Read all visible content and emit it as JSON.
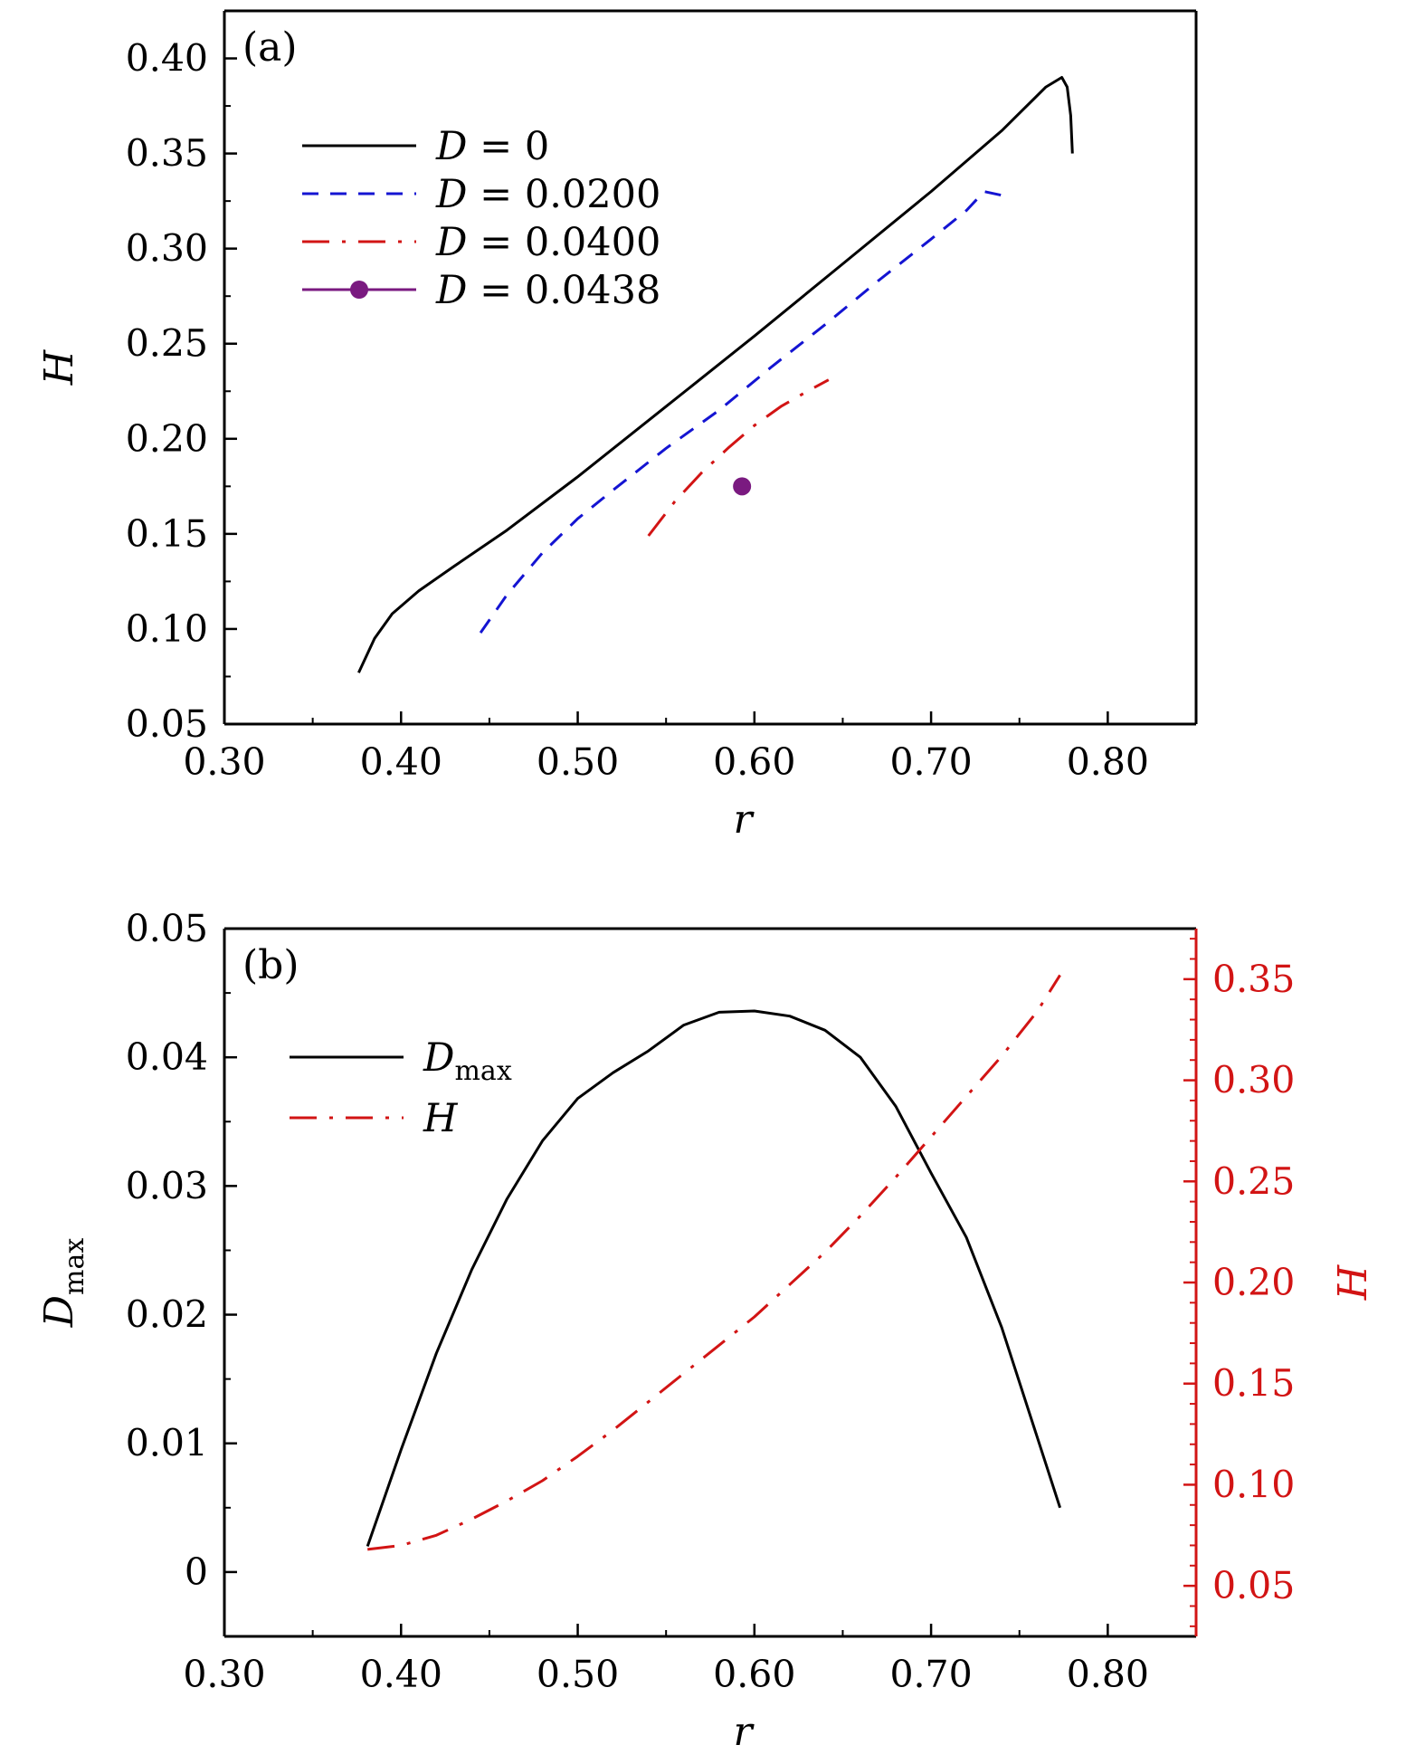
{
  "chart_data": [
    {
      "type": "line",
      "panel_label": "(a)",
      "xlabel": "r",
      "ylabel": "H",
      "xlim": [
        0.3,
        0.85
      ],
      "ylim": [
        0.05,
        0.425
      ],
      "xticks": [
        "0.30",
        "0.40",
        "0.50",
        "0.60",
        "0.70",
        "0.80"
      ],
      "yticks": [
        "0.05",
        "0.10",
        "0.15",
        "0.20",
        "0.25",
        "0.30",
        "0.35",
        "0.40"
      ],
      "legend_position": "upper-left",
      "series": [
        {
          "name": "D = 0",
          "var": "D",
          "eq": "=",
          "val": "0",
          "style": "solid",
          "color": "#000000",
          "x": [
            0.376,
            0.385,
            0.395,
            0.41,
            0.43,
            0.46,
            0.5,
            0.55,
            0.6,
            0.65,
            0.7,
            0.74,
            0.765,
            0.774,
            0.777,
            0.779,
            0.78
          ],
          "y": [
            0.077,
            0.095,
            0.108,
            0.12,
            0.133,
            0.152,
            0.18,
            0.217,
            0.254,
            0.292,
            0.33,
            0.362,
            0.385,
            0.39,
            0.385,
            0.37,
            0.35
          ]
        },
        {
          "name": "D = 0.0200",
          "var": "D",
          "eq": "=",
          "val": "0.0200",
          "style": "dashed",
          "color": "#1414d2",
          "x": [
            0.445,
            0.46,
            0.48,
            0.5,
            0.52,
            0.55,
            0.58,
            0.61,
            0.64,
            0.67,
            0.7,
            0.72,
            0.73,
            0.74
          ],
          "y": [
            0.098,
            0.118,
            0.14,
            0.158,
            0.173,
            0.195,
            0.215,
            0.238,
            0.26,
            0.283,
            0.305,
            0.32,
            0.33,
            0.328
          ]
        },
        {
          "name": "D = 0.0400",
          "var": "D",
          "eq": "=",
          "val": "0.0400",
          "style": "dashdot",
          "color": "#d21414",
          "x": [
            0.54,
            0.555,
            0.57,
            0.585,
            0.6,
            0.615,
            0.63,
            0.642
          ],
          "y": [
            0.149,
            0.167,
            0.182,
            0.195,
            0.207,
            0.217,
            0.225,
            0.231
          ]
        },
        {
          "name": "D = 0.0438",
          "var": "D",
          "eq": "=",
          "val": "0.0438",
          "style": "marker",
          "color": "#7a1a80",
          "x": [
            0.593
          ],
          "y": [
            0.175
          ]
        }
      ]
    },
    {
      "type": "line",
      "panel_label": "(b)",
      "xlabel": "r",
      "ylabel": "D",
      "ylabel_sub": "max",
      "y2label": "H",
      "xlim": [
        0.3,
        0.85
      ],
      "ylim": [
        -0.005,
        0.05
      ],
      "y2lim": [
        0.025,
        0.375
      ],
      "xticks": [
        "0.30",
        "0.40",
        "0.50",
        "0.60",
        "0.70",
        "0.80"
      ],
      "yticks": [
        "0",
        "0.01",
        "0.02",
        "0.03",
        "0.04",
        "0.05"
      ],
      "y2ticks": [
        "0.05",
        "0.10",
        "0.15",
        "0.20",
        "0.25",
        "0.30",
        "0.35"
      ],
      "legend_position": "upper-left",
      "series": [
        {
          "name": "Dmax",
          "var": "D",
          "sub": "max",
          "axis": "left",
          "style": "solid",
          "color": "#000000",
          "x": [
            0.381,
            0.4,
            0.42,
            0.44,
            0.46,
            0.48,
            0.5,
            0.52,
            0.54,
            0.56,
            0.58,
            0.6,
            0.62,
            0.64,
            0.66,
            0.68,
            0.7,
            0.72,
            0.74,
            0.76,
            0.773
          ],
          "y": [
            0.002,
            0.0095,
            0.017,
            0.0235,
            0.029,
            0.0335,
            0.0368,
            0.0388,
            0.0405,
            0.0425,
            0.0435,
            0.0436,
            0.0432,
            0.0421,
            0.04,
            0.0362,
            0.031,
            0.026,
            0.019,
            0.0105,
            0.005
          ]
        },
        {
          "name": "H",
          "var": "H",
          "axis": "right",
          "style": "dashdot",
          "color": "#d21414",
          "x": [
            0.381,
            0.4,
            0.42,
            0.44,
            0.46,
            0.48,
            0.5,
            0.52,
            0.54,
            0.56,
            0.58,
            0.6,
            0.62,
            0.64,
            0.66,
            0.68,
            0.7,
            0.72,
            0.74,
            0.76,
            0.773
          ],
          "y": [
            0.068,
            0.07,
            0.075,
            0.083,
            0.092,
            0.102,
            0.114,
            0.127,
            0.141,
            0.155,
            0.169,
            0.183,
            0.199,
            0.215,
            0.233,
            0.252,
            0.272,
            0.292,
            0.312,
            0.334,
            0.352
          ]
        }
      ]
    }
  ]
}
